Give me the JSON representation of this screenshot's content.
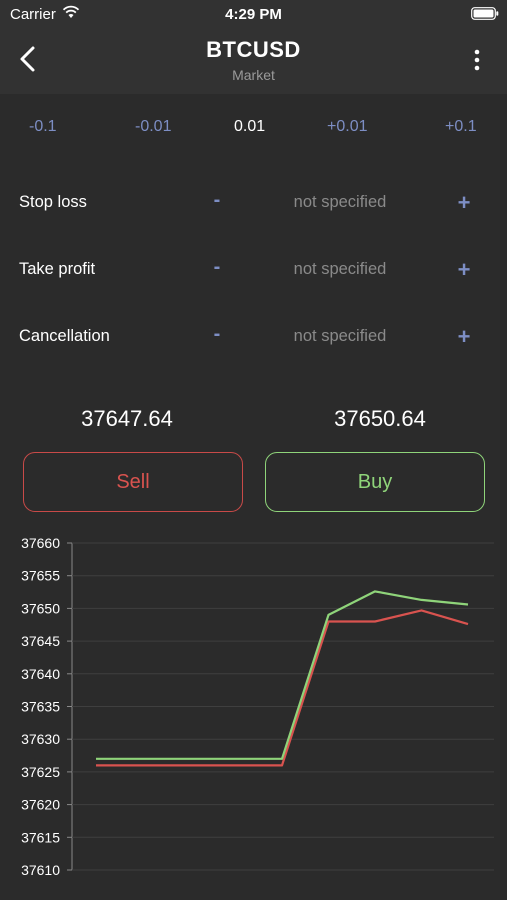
{
  "status_bar": {
    "carrier": "Carrier",
    "time": "4:29 PM"
  },
  "nav": {
    "title": "BTCUSD",
    "subtitle": "Market"
  },
  "steps": [
    "-0.1",
    "-0.01",
    "0.01",
    "+0.01",
    "+0.1"
  ],
  "params": [
    {
      "label": "Stop loss",
      "minus": "-",
      "value": "not specified",
      "plus": "+"
    },
    {
      "label": "Take profit",
      "minus": "-",
      "value": "not specified",
      "plus": "+"
    },
    {
      "label": "Cancellation",
      "minus": "-",
      "value": "not specified",
      "plus": "+"
    }
  ],
  "prices": {
    "sell": "37647.64",
    "buy": "37650.64"
  },
  "buttons": {
    "sell": "Sell",
    "buy": "Buy"
  },
  "colors": {
    "sell": "#d9534f",
    "buy": "#8fd47a",
    "accent": "#7d8ec4"
  },
  "chart_data": {
    "type": "line",
    "title": "",
    "xlabel": "",
    "ylabel": "",
    "ylim": [
      37610,
      37660
    ],
    "yticks": [
      "37660",
      "37655",
      "37650",
      "37645",
      "37640",
      "37635",
      "37630",
      "37625",
      "37620",
      "37615",
      "37610"
    ],
    "grid": true,
    "x": [
      0,
      1,
      2,
      3,
      4,
      5,
      6,
      7,
      8
    ],
    "series": [
      {
        "color": "#d9534f",
        "values": [
          37626,
          37626,
          37626,
          37626,
          37626,
          37648,
          37648,
          37649.7,
          37647.6
        ]
      },
      {
        "color": "#8fd47a",
        "values": [
          37627,
          37627,
          37627,
          37627,
          37627,
          37649,
          37652.6,
          37651.3,
          37650.6
        ]
      }
    ]
  }
}
